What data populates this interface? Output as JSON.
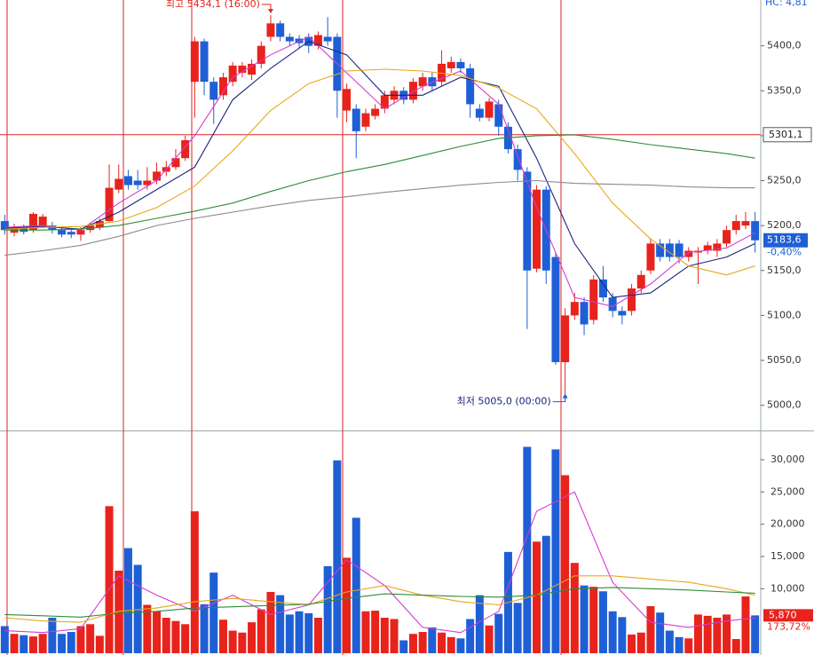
{
  "chart_data": {
    "type": "candlestick",
    "corner_text": "HC: 4,81",
    "up_color": "#e8231c",
    "down_color": "#1f5fd6",
    "open": [
      5205,
      5192,
      5198,
      5195,
      5200,
      5200,
      5195,
      5193,
      5190,
      5195,
      5198,
      5205,
      5240,
      5255,
      5250,
      5245,
      5250,
      5260,
      5265,
      5275,
      5360,
      5405,
      5360,
      5345,
      5360,
      5370,
      5368,
      5380,
      5410,
      5425,
      5410,
      5408,
      5410,
      5400,
      5410,
      5410,
      5328,
      5330,
      5310,
      5322,
      5330,
      5340,
      5350,
      5340,
      5355,
      5365,
      5360,
      5375,
      5382,
      5375,
      5330,
      5320,
      5335,
      5310,
      5285,
      5260,
      5152,
      5240,
      5165,
      5048,
      5100,
      5115,
      5095,
      5140,
      5120,
      5105,
      5105,
      5130,
      5150,
      5180,
      5180,
      5180,
      5165,
      5170,
      5172,
      5172,
      5180,
      5195,
      5200,
      5205
    ],
    "high": [
      5212,
      5202,
      5201,
      5215,
      5213,
      5204,
      5198,
      5196,
      5198,
      5203,
      5208,
      5268,
      5268,
      5262,
      5262,
      5265,
      5270,
      5272,
      5285,
      5300,
      5410,
      5408,
      5365,
      5370,
      5382,
      5382,
      5385,
      5405,
      5434.1,
      5428,
      5414,
      5412,
      5414,
      5416,
      5432,
      5414,
      5358,
      5335,
      5330,
      5335,
      5350,
      5355,
      5354,
      5364,
      5370,
      5370,
      5395,
      5388,
      5386,
      5380,
      5335,
      5342,
      5340,
      5315,
      5290,
      5265,
      5245,
      5244,
      5170,
      5108,
      5125,
      5120,
      5145,
      5155,
      5125,
      5110,
      5135,
      5150,
      5186,
      5185,
      5185,
      5184,
      5176,
      5176,
      5182,
      5185,
      5200,
      5212,
      5215,
      5215
    ],
    "low": [
      5190,
      5188,
      5190,
      5192,
      5197,
      5191,
      5187,
      5186,
      5183,
      5192,
      5195,
      5203,
      5236,
      5240,
      5240,
      5240,
      5246,
      5255,
      5262,
      5272,
      5320,
      5345,
      5313,
      5340,
      5355,
      5365,
      5362,
      5375,
      5405,
      5405,
      5400,
      5398,
      5392,
      5396,
      5400,
      5320,
      5315,
      5275,
      5305,
      5318,
      5325,
      5335,
      5335,
      5336,
      5350,
      5350,
      5355,
      5370,
      5370,
      5320,
      5316,
      5316,
      5300,
      5280,
      5250,
      5085,
      5148,
      5135,
      5045,
      5005,
      5095,
      5078,
      5090,
      5115,
      5098,
      5090,
      5100,
      5125,
      5146,
      5160,
      5160,
      5158,
      5160,
      5135,
      5168,
      5165,
      5176,
      5190,
      5196,
      5170
    ],
    "close": [
      5195,
      5198,
      5193,
      5213,
      5210,
      5195,
      5190,
      5190,
      5195,
      5200,
      5205,
      5242,
      5252,
      5245,
      5245,
      5250,
      5260,
      5265,
      5275,
      5295,
      5405,
      5360,
      5340,
      5365,
      5378,
      5378,
      5380,
      5400,
      5425,
      5410,
      5405,
      5403,
      5400,
      5412,
      5405,
      5350,
      5352,
      5305,
      5325,
      5330,
      5345,
      5350,
      5340,
      5360,
      5365,
      5355,
      5380,
      5382,
      5375,
      5335,
      5320,
      5338,
      5310,
      5285,
      5262,
      5150,
      5240,
      5150,
      5048,
      5100,
      5115,
      5090,
      5140,
      5120,
      5105,
      5100,
      5130,
      5145,
      5180,
      5165,
      5165,
      5165,
      5172,
      5172,
      5178,
      5180,
      5195,
      5205,
      5205,
      5183.6
    ],
    "volume": [
      4200,
      3000,
      2800,
      2600,
      3000,
      5500,
      3000,
      3300,
      4200,
      4500,
      2700,
      22800,
      12800,
      16300,
      13700,
      7500,
      6500,
      5500,
      5000,
      4500,
      22000,
      7600,
      12500,
      5200,
      3500,
      3200,
      4800,
      6800,
      9500,
      9000,
      6000,
      6500,
      6200,
      5500,
      13500,
      29900,
      14800,
      21000,
      6500,
      6600,
      5500,
      5300,
      2000,
      3000,
      3300,
      4000,
      3200,
      2500,
      2300,
      5300,
      9000,
      4300,
      6100,
      15700,
      7800,
      32000,
      17300,
      18200,
      31600,
      27600,
      14000,
      10500,
      10300,
      9600,
      6500,
      5600,
      2900,
      3200,
      7300,
      6300,
      3500,
      2500,
      2300,
      6000,
      5800,
      5500,
      6000,
      2200,
      8800,
      5870
    ],
    "ma_x": [
      0,
      4,
      8,
      12,
      16,
      20,
      24,
      28,
      32,
      36,
      40,
      44,
      48,
      52,
      56,
      60,
      64,
      68,
      72,
      76,
      79
    ],
    "ma_series": [
      {
        "color": "#d33ccf",
        "values": [
          5198,
          5200,
          5195,
          5225,
          5250,
          5300,
          5365,
          5390,
          5410,
          5370,
          5330,
          5355,
          5372,
          5335,
          5220,
          5120,
          5110,
          5135,
          5170,
          5175,
          5192
        ]
      },
      {
        "color": "#1a237e",
        "values": [
          5197,
          5199,
          5196,
          5215,
          5240,
          5265,
          5340,
          5375,
          5405,
          5390,
          5345,
          5345,
          5365,
          5355,
          5275,
          5180,
          5120,
          5125,
          5155,
          5165,
          5180
        ]
      },
      {
        "color": "#e6a817",
        "values": [
          5196,
          5198,
          5199,
          5205,
          5220,
          5244,
          5283,
          5328,
          5358,
          5372,
          5374,
          5372,
          5367,
          5353,
          5330,
          5280,
          5225,
          5185,
          5155,
          5145,
          5155
        ]
      },
      {
        "color": "#2e8b3a",
        "values": [
          5195,
          5195,
          5196,
          5200,
          5208,
          5216,
          5225,
          5238,
          5250,
          5260,
          5268,
          5278,
          5288,
          5297,
          5300,
          5301,
          5296,
          5290,
          5285,
          5280,
          5275
        ]
      },
      {
        "color": "#8a8a8a",
        "values": [
          5167,
          5172,
          5178,
          5188,
          5200,
          5208,
          5215,
          5222,
          5228,
          5232,
          5237,
          5241,
          5245,
          5248,
          5250,
          5247,
          5246,
          5245,
          5243,
          5242,
          5242
        ]
      }
    ],
    "volume_ma_series": [
      {
        "color": "#d33ccf",
        "values": [
          3500,
          3200,
          3800,
          12000,
          9000,
          6500,
          9000,
          6000,
          7500,
          14500,
          10500,
          4000,
          3200,
          6500,
          22000,
          25000,
          11000,
          4800,
          4000,
          5000,
          5500
        ]
      },
      {
        "color": "#e6a817",
        "values": [
          5500,
          5000,
          4800,
          6500,
          7000,
          8000,
          8500,
          8000,
          7500,
          9500,
          10500,
          9000,
          8000,
          7500,
          9000,
          12000,
          12000,
          11500,
          11000,
          10000,
          9000
        ]
      },
      {
        "color": "#2e8b3a",
        "values": [
          6000,
          5800,
          5600,
          6200,
          6500,
          7000,
          7200,
          7400,
          7600,
          8500,
          9200,
          9000,
          8800,
          8700,
          9000,
          10000,
          10200,
          10000,
          9800,
          9500,
          9300
        ]
      }
    ],
    "ylim": [
      4972,
      5451
    ],
    "yticks": [
      {
        "value": 5000,
        "label": "5000,0"
      },
      {
        "value": 5050,
        "label": "5050,0"
      },
      {
        "value": 5100,
        "label": "5100,0"
      },
      {
        "value": 5150,
        "label": "5150,0"
      },
      {
        "value": 5200,
        "label": "5200,0"
      },
      {
        "value": 5250,
        "label": "5250,0"
      },
      {
        "value": 5300,
        "label": "5300,0"
      },
      {
        "value": 5350,
        "label": "5350,0"
      },
      {
        "value": 5400,
        "label": "5400,0"
      }
    ],
    "volume_ylim": [
      0,
      34400
    ],
    "volume_yticks": [
      {
        "value": 10000,
        "label": "10,000"
      },
      {
        "value": 15000,
        "label": "15,000"
      },
      {
        "value": 20000,
        "label": "20,000"
      },
      {
        "value": 25000,
        "label": "25,000"
      },
      {
        "value": 30000,
        "label": "30,000"
      }
    ],
    "crosshair": {
      "value": 5301.1,
      "label": "5301,1"
    },
    "last_price": {
      "value": 5183.6,
      "label": "5183,6"
    },
    "change_label": "-0,40%",
    "last_volume": {
      "value": 5870,
      "label": "5,870"
    },
    "volume_ratio_label": "173,72%",
    "high_annotation": {
      "value": 5434.1,
      "label": "최고 5434,1 (16:00)"
    },
    "low_annotation": {
      "value": 5005.0,
      "label": "최저 5005,0 (00:00)"
    }
  }
}
